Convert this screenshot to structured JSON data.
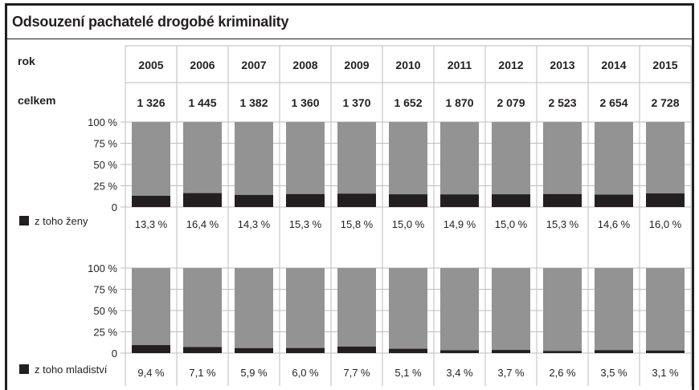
{
  "title": "Odsouzení pachatelé drogobé kriminality",
  "row_labels": {
    "year": "rok",
    "total": "celkem"
  },
  "colors": {
    "women_or_youth": "#231f20",
    "rest": "#939393",
    "grid": "#bdbdbd",
    "text": "#231f20"
  },
  "chart_data": [
    {
      "type": "bar",
      "stacked": true,
      "categories": [
        "2005",
        "2006",
        "2007",
        "2008",
        "2009",
        "2010",
        "2011",
        "2012",
        "2013",
        "2014",
        "2015"
      ],
      "category_totals": [
        "1 326",
        "1 445",
        "1 382",
        "1 360",
        "1 370",
        "1 652",
        "1 870",
        "2 079",
        "2 523",
        "2 654",
        "2 728"
      ],
      "series": [
        {
          "name": "z toho ženy",
          "values": [
            13.3,
            16.4,
            14.3,
            15.3,
            15.8,
            15.0,
            14.9,
            15.0,
            15.3,
            14.6,
            16.0
          ]
        }
      ],
      "value_labels": [
        "13,3 %",
        "16,4 %",
        "14,3 %",
        "15,3 %",
        "15,8 %",
        "15,0 %",
        "14,9 %",
        "15,0 %",
        "15,3 %",
        "14,6 %",
        "16,0 %"
      ],
      "yticks": [
        "0",
        "25 %",
        "50 %",
        "75 %",
        "100 %"
      ],
      "ylim": [
        0,
        100
      ],
      "legend": "left"
    },
    {
      "type": "bar",
      "stacked": true,
      "categories": [
        "2005",
        "2006",
        "2007",
        "2008",
        "2009",
        "2010",
        "2011",
        "2012",
        "2013",
        "2014",
        "2015"
      ],
      "series": [
        {
          "name": "z toho mladiství",
          "values": [
            9.4,
            7.1,
            5.9,
            6.0,
            7.7,
            5.1,
            3.4,
            3.7,
            2.6,
            3.5,
            3.1
          ]
        }
      ],
      "value_labels": [
        "9,4 %",
        "7,1 %",
        "5,9 %",
        "6,0 %",
        "7,7 %",
        "5,1 %",
        "3,4 %",
        "3,7 %",
        "2,6 %",
        "3,5 %",
        "3,1 %"
      ],
      "yticks": [
        "0",
        "25 %",
        "50 %",
        "75 %",
        "100 %"
      ],
      "ylim": [
        0,
        100
      ],
      "legend": "left"
    }
  ]
}
